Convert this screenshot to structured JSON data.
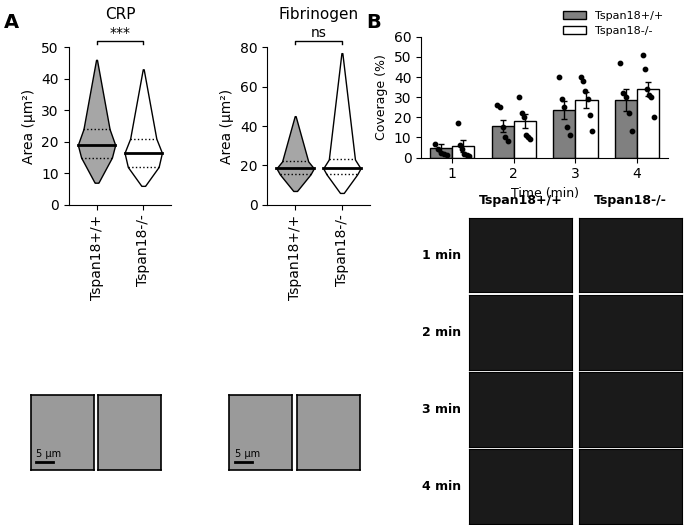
{
  "panel_labels": [
    "A",
    "B"
  ],
  "chart_data": [
    {
      "type": "violin",
      "title": "CRP",
      "y_label": "Area (µm²)",
      "categories": [
        "Tspan18+/+",
        "Tspan18-/-"
      ],
      "colors": [
        "#a6a6a6",
        "#ffffff"
      ],
      "stats": [
        {
          "min": 7,
          "q1": 15,
          "median": 19,
          "q3": 24,
          "max": 46
        },
        {
          "min": 6,
          "q1": 12,
          "median": 16.5,
          "q3": 21,
          "max": 43
        }
      ],
      "significance": "***",
      "ylim": [
        0,
        50
      ],
      "yticks": [
        0,
        10,
        20,
        30,
        40,
        50
      ]
    },
    {
      "type": "violin",
      "title": "Fibrinogen",
      "y_label": "Area (µm²)",
      "categories": [
        "Tspan18+/+",
        "Tspan18-/-"
      ],
      "colors": [
        "#a6a6a6",
        "#ffffff"
      ],
      "stats": [
        {
          "min": 7,
          "q1": 15.5,
          "median": 18.5,
          "q3": 22,
          "max": 45
        },
        {
          "min": 6,
          "q1": 15.5,
          "median": 18.5,
          "q3": 23,
          "max": 77
        }
      ],
      "significance": "ns",
      "ylim": [
        0,
        80
      ],
      "yticks": [
        0,
        20,
        40,
        60,
        80
      ]
    },
    {
      "type": "bar",
      "x_label": "Time (min)",
      "y_label": "Coverage (%)",
      "x": [
        1,
        2,
        3,
        4
      ],
      "xlim": [
        0.5,
        4.5
      ],
      "xticks": [
        1,
        2,
        3,
        4
      ],
      "ylim": [
        0,
        60
      ],
      "yticks": [
        0,
        10,
        20,
        30,
        40,
        50,
        60
      ],
      "legend": "upper right",
      "series": [
        {
          "name": "Tspan18+/+",
          "color": "#808080",
          "values": [
            4.5,
            15.5,
            23.5,
            28.5
          ],
          "errors": [
            2,
            3,
            4.5,
            5.5
          ],
          "points": [
            [
              6.5,
              4,
              2,
              1.5,
              1
            ],
            [
              26,
              25,
              15,
              10,
              8
            ],
            [
              40,
              29,
              25,
              15,
              11
            ],
            [
              47,
              32,
              30,
              22,
              13
            ]
          ]
        },
        {
          "name": "Tspan18-/-",
          "color": "#ffffff",
          "values": [
            5.5,
            18,
            28.5,
            34
          ],
          "errors": [
            3,
            3.5,
            4,
            3.5
          ],
          "points": [
            [
              17,
              6,
              4,
              1.5,
              1,
              0.5
            ],
            [
              30,
              22,
              20,
              11,
              10,
              9
            ],
            [
              40,
              38,
              33,
              29,
              21,
              13
            ],
            [
              51,
              44,
              34,
              31,
              30,
              20
            ]
          ]
        }
      ]
    }
  ],
  "A_images": {
    "scale_bar": "5 µm"
  },
  "B_images": {
    "columns": [
      "Tspan18+/+",
      "Tspan18-/-"
    ],
    "rows": [
      "1 min",
      "2 min",
      "3 min",
      "4 min"
    ]
  }
}
